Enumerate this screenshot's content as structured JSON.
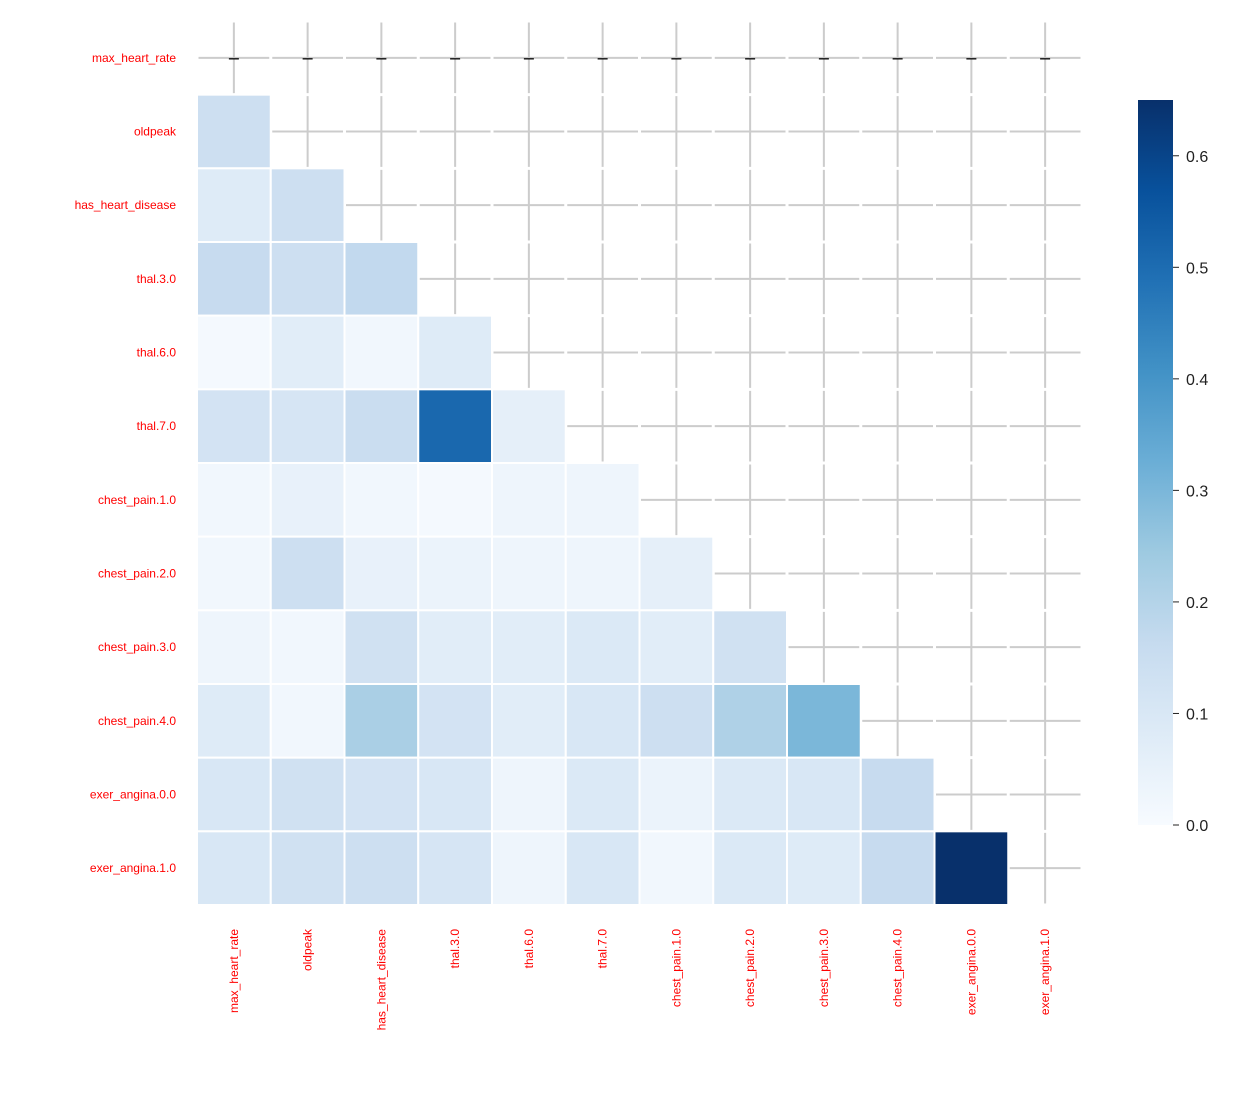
{
  "chart_data": {
    "type": "heatmap",
    "title": "",
    "mask": "upper triangle including diagonal",
    "labels": [
      "max_heart_rate",
      "oldpeak",
      "has_heart_disease",
      "thal.3.0",
      "thal.6.0",
      "thal.7.0",
      "chest_pain.1.0",
      "chest_pain.2.0",
      "chest_pain.3.0",
      "chest_pain.4.0",
      "exer_angina.0.0",
      "exer_angina.1.0"
    ],
    "values": [
      [],
      [
        0.14
      ],
      [
        0.08,
        0.14
      ],
      [
        0.16,
        0.14,
        0.17
      ],
      [
        0.01,
        0.07,
        0.02,
        0.08
      ],
      [
        0.12,
        0.11,
        0.15,
        0.51,
        0.06
      ],
      [
        0.02,
        0.05,
        0.02,
        0.01,
        0.03,
        0.03
      ],
      [
        0.02,
        0.14,
        0.05,
        0.04,
        0.03,
        0.03,
        0.06
      ],
      [
        0.03,
        0.02,
        0.13,
        0.07,
        0.07,
        0.09,
        0.07,
        0.13
      ],
      [
        0.08,
        0.02,
        0.22,
        0.12,
        0.07,
        0.1,
        0.14,
        0.21,
        0.3
      ],
      [
        0.1,
        0.13,
        0.12,
        0.1,
        0.03,
        0.09,
        0.04,
        0.09,
        0.1,
        0.16
      ],
      [
        0.1,
        0.13,
        0.14,
        0.11,
        0.03,
        0.1,
        0.02,
        0.09,
        0.08,
        0.16,
        0.65
      ]
    ],
    "colormap": "Blues",
    "vmin": 0,
    "vmax": 0.65,
    "colorbar_ticks": [
      "0.0",
      "0.1",
      "0.2",
      "0.3",
      "0.4",
      "0.5",
      "0.6"
    ],
    "label_color": "#ff0000"
  }
}
